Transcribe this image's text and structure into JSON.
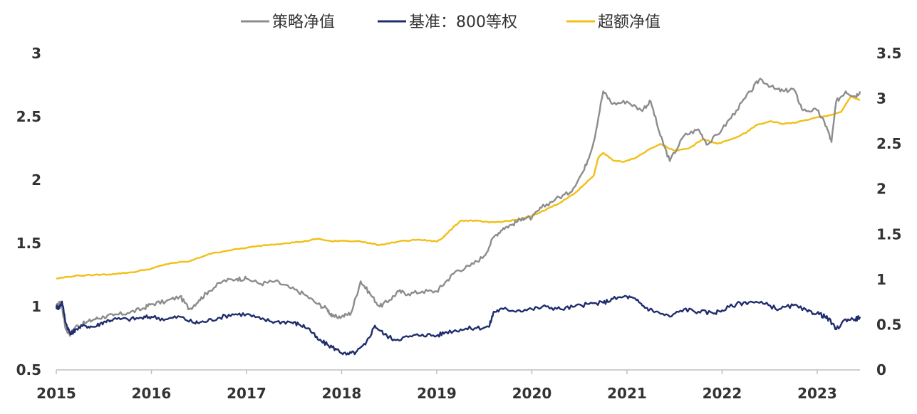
{
  "chart_data": {
    "type": "line",
    "title": "",
    "legend_position": "top-center",
    "x_ticks": [
      "2015",
      "2016",
      "2017",
      "2018",
      "2019",
      "2020",
      "2021",
      "2022",
      "2023"
    ],
    "xlim": [
      2015.0,
      2023.45
    ],
    "y_left": {
      "label": "",
      "ylim": [
        0.5,
        3
      ],
      "ticks": [
        "0.5",
        "1",
        "1.5",
        "2",
        "2.5",
        "3"
      ]
    },
    "y_right": {
      "label": "",
      "ylim": [
        0,
        3.5
      ],
      "ticks": [
        "0",
        "0.5",
        "1",
        "1.5",
        "2",
        "2.5",
        "3",
        "3.5"
      ]
    },
    "series": [
      {
        "name": "策略净值",
        "axis": "left",
        "color": "#8c8c8c",
        "x": [
          2015.0,
          2015.05,
          2015.1,
          2015.15,
          2015.2,
          2015.3,
          2015.4,
          2015.5,
          2015.6,
          2015.75,
          2015.9,
          2016.0,
          2016.15,
          2016.3,
          2016.4,
          2016.5,
          2016.6,
          2016.75,
          2016.9,
          2017.0,
          2017.15,
          2017.3,
          2017.45,
          2017.6,
          2017.75,
          2017.85,
          2017.9,
          2018.0,
          2018.1,
          2018.2,
          2018.3,
          2018.4,
          2018.5,
          2018.6,
          2018.7,
          2018.85,
          2019.0,
          2019.1,
          2019.2,
          2019.35,
          2019.5,
          2019.6,
          2019.7,
          2019.8,
          2019.9,
          2020.0,
          2020.1,
          2020.25,
          2020.4,
          2020.55,
          2020.65,
          2020.75,
          2020.85,
          2021.0,
          2021.15,
          2021.25,
          2021.35,
          2021.45,
          2021.6,
          2021.75,
          2021.85,
          2022.0,
          2022.15,
          2022.3,
          2022.4,
          2022.55,
          2022.65,
          2022.75,
          2022.85,
          2023.0,
          2023.1,
          2023.15,
          2023.2,
          2023.3,
          2023.4,
          2023.45
        ],
        "values": [
          1.0,
          1.04,
          0.82,
          0.78,
          0.84,
          0.87,
          0.9,
          0.92,
          0.93,
          0.95,
          0.98,
          1.02,
          1.04,
          1.08,
          0.98,
          1.05,
          1.12,
          1.2,
          1.22,
          1.22,
          1.18,
          1.2,
          1.15,
          1.1,
          1.02,
          0.98,
          0.92,
          0.92,
          0.95,
          1.2,
          1.1,
          1.0,
          1.05,
          1.12,
          1.1,
          1.12,
          1.12,
          1.2,
          1.28,
          1.32,
          1.4,
          1.55,
          1.62,
          1.65,
          1.7,
          1.7,
          1.78,
          1.85,
          1.9,
          2.08,
          2.3,
          2.7,
          2.6,
          2.62,
          2.55,
          2.62,
          2.35,
          2.15,
          2.35,
          2.4,
          2.28,
          2.4,
          2.55,
          2.7,
          2.8,
          2.72,
          2.7,
          2.72,
          2.55,
          2.55,
          2.42,
          2.3,
          2.62,
          2.7,
          2.66,
          2.7
        ]
      },
      {
        "name": "基准：800等权",
        "axis": "left",
        "color": "#1f2d6d",
        "x": [
          2015.0,
          2015.03,
          2015.06,
          2015.1,
          2015.15,
          2015.2,
          2015.3,
          2015.4,
          2015.5,
          2015.6,
          2015.75,
          2015.9,
          2016.0,
          2016.15,
          2016.3,
          2016.45,
          2016.55,
          2016.7,
          2016.85,
          2017.0,
          2017.15,
          2017.3,
          2017.45,
          2017.55,
          2017.65,
          2017.75,
          2017.85,
          2017.95,
          2018.05,
          2018.15,
          2018.25,
          2018.35,
          2018.45,
          2018.55,
          2018.7,
          2018.85,
          2019.0,
          2019.1,
          2019.25,
          2019.4,
          2019.55,
          2019.6,
          2019.7,
          2019.85,
          2020.0,
          2020.15,
          2020.3,
          2020.45,
          2020.6,
          2020.75,
          2020.85,
          2021.0,
          2021.1,
          2021.2,
          2021.3,
          2021.45,
          2021.6,
          2021.75,
          2021.9,
          2022.0,
          2022.15,
          2022.3,
          2022.45,
          2022.6,
          2022.75,
          2022.9,
          2023.0,
          2023.08,
          2023.12,
          2023.2,
          2023.3,
          2023.4,
          2023.45
        ],
        "values": [
          1.0,
          0.99,
          1.04,
          0.87,
          0.78,
          0.82,
          0.85,
          0.84,
          0.88,
          0.9,
          0.9,
          0.91,
          0.92,
          0.9,
          0.92,
          0.87,
          0.88,
          0.91,
          0.94,
          0.94,
          0.9,
          0.88,
          0.88,
          0.86,
          0.83,
          0.74,
          0.7,
          0.66,
          0.62,
          0.64,
          0.7,
          0.85,
          0.78,
          0.74,
          0.76,
          0.78,
          0.77,
          0.8,
          0.82,
          0.83,
          0.84,
          0.96,
          0.98,
          0.97,
          0.98,
          1.0,
          0.98,
          1.0,
          1.02,
          1.03,
          1.06,
          1.08,
          1.05,
          0.99,
          0.96,
          0.92,
          0.98,
          0.96,
          0.95,
          0.97,
          1.02,
          1.04,
          1.02,
          0.98,
          1.01,
          0.96,
          0.95,
          0.92,
          0.9,
          0.82,
          0.9,
          0.9,
          0.92
        ]
      },
      {
        "name": "超额净值",
        "axis": "right",
        "color": "#f2bf14",
        "x": [
          2015.0,
          2015.2,
          2015.4,
          2015.6,
          2015.8,
          2016.0,
          2016.2,
          2016.4,
          2016.6,
          2016.8,
          2017.0,
          2017.2,
          2017.4,
          2017.6,
          2017.75,
          2017.9,
          2018.0,
          2018.2,
          2018.4,
          2018.6,
          2018.8,
          2019.0,
          2019.05,
          2019.1,
          2019.25,
          2019.4,
          2019.55,
          2019.7,
          2019.85,
          2020.0,
          2020.1,
          2020.2,
          2020.3,
          2020.45,
          2020.55,
          2020.65,
          2020.7,
          2020.75,
          2020.85,
          2020.95,
          2021.1,
          2021.25,
          2021.35,
          2021.5,
          2021.65,
          2021.8,
          2021.95,
          2022.1,
          2022.25,
          2022.35,
          2022.5,
          2022.65,
          2022.8,
          2022.95,
          2023.05,
          2023.15,
          2023.25,
          2023.35,
          2023.45
        ],
        "values": [
          1.01,
          1.04,
          1.05,
          1.06,
          1.08,
          1.12,
          1.18,
          1.2,
          1.28,
          1.32,
          1.35,
          1.38,
          1.4,
          1.42,
          1.45,
          1.42,
          1.43,
          1.42,
          1.38,
          1.42,
          1.44,
          1.42,
          1.45,
          1.5,
          1.65,
          1.65,
          1.63,
          1.64,
          1.66,
          1.7,
          1.75,
          1.8,
          1.85,
          1.95,
          2.05,
          2.15,
          2.35,
          2.4,
          2.32,
          2.3,
          2.35,
          2.45,
          2.5,
          2.42,
          2.45,
          2.55,
          2.5,
          2.55,
          2.62,
          2.7,
          2.75,
          2.72,
          2.74,
          2.78,
          2.8,
          2.82,
          2.85,
          3.02,
          2.98
        ]
      }
    ]
  }
}
